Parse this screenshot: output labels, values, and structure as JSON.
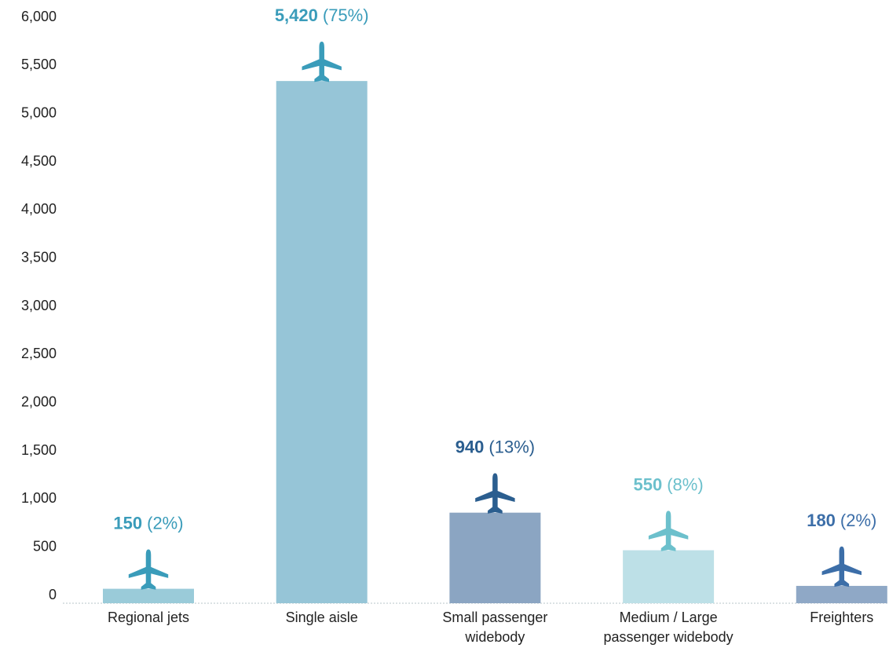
{
  "chart_data": {
    "type": "bar",
    "categories": [
      [
        "Regional jets"
      ],
      [
        "Single aisle"
      ],
      [
        "Small passenger",
        "widebody"
      ],
      [
        "Medium / Large",
        "passenger widebody"
      ],
      [
        "Freighters"
      ]
    ],
    "values": [
      150,
      5420,
      940,
      550,
      180
    ],
    "value_labels": [
      "150",
      "5,420",
      "940",
      "550",
      "180"
    ],
    "share_labels": [
      "(2%)",
      "(75%)",
      "(13%)",
      "(8%)",
      "(2%)"
    ],
    "colors": [
      "#9acbd9",
      "#96c5d7",
      "#8ba5c2",
      "#bde0e7",
      "#8fa8c6"
    ],
    "label_colors": [
      "#3a9cba",
      "#3a9cba",
      "#2b5e8f",
      "#6cc0cc",
      "#3c6ea8"
    ],
    "ylim": [
      0,
      6000
    ],
    "yticks": [
      0,
      500,
      {
        "value": 1000,
        "label": "1,000"
      },
      {
        "value": 1500,
        "label": "1,500"
      },
      {
        "value": 2000,
        "label": "2,000"
      },
      {
        "value": 2500,
        "label": "2,500"
      },
      {
        "value": 3000,
        "label": "3,000"
      },
      {
        "value": 3500,
        "label": "3,500"
      },
      {
        "value": 4000,
        "label": "4,000"
      },
      {
        "value": 4500,
        "label": "4,500"
      },
      {
        "value": 5000,
        "label": "5,000"
      },
      {
        "value": 5500,
        "label": "5,500"
      },
      {
        "value": 6000,
        "label": "6,000"
      }
    ],
    "grid": false
  }
}
